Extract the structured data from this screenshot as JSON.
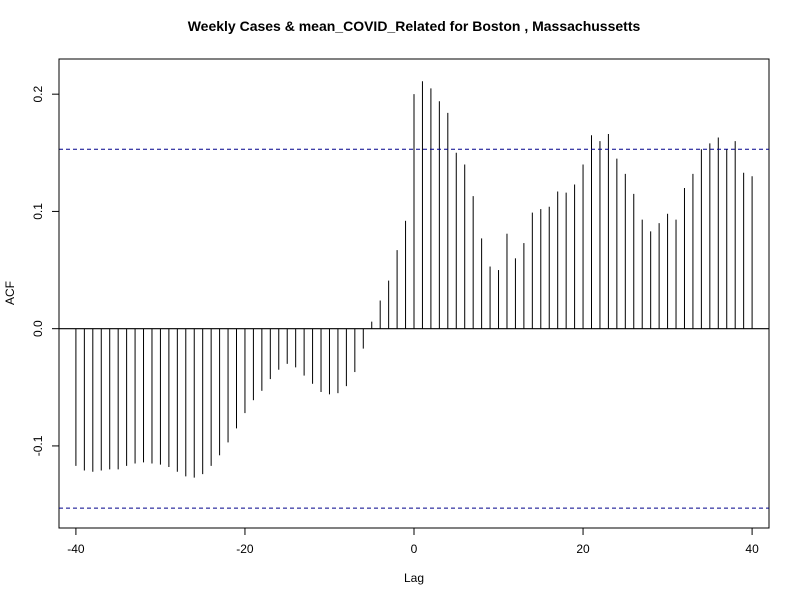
{
  "chart_data": {
    "type": "bar",
    "title": "Weekly Cases & mean_COVID_Related for Boston , Massachussetts",
    "xlabel": "Lag",
    "ylabel": "ACF",
    "xlim": [
      -42,
      42
    ],
    "ylim": [
      -0.17,
      0.23
    ],
    "x_ticks": [
      -40,
      -20,
      0,
      20,
      40
    ],
    "x_tick_labels": [
      "-40",
      "-20",
      "0",
      "20",
      "40"
    ],
    "y_ticks": [
      -0.1,
      0.0,
      0.1,
      0.2
    ],
    "y_tick_labels": [
      "-0.1",
      "0.0",
      "0.1",
      "0.2"
    ],
    "confidence_bounds": [
      0.153,
      -0.153
    ],
    "bound_color": "#00008B",
    "grid": false,
    "lags": [
      -40,
      -39,
      -38,
      -37,
      -36,
      -35,
      -34,
      -33,
      -32,
      -31,
      -30,
      -29,
      -28,
      -27,
      -26,
      -25,
      -24,
      -23,
      -22,
      -21,
      -20,
      -19,
      -18,
      -17,
      -16,
      -15,
      -14,
      -13,
      -12,
      -11,
      -10,
      -9,
      -8,
      -7,
      -6,
      -5,
      -4,
      -3,
      -2,
      -1,
      0,
      1,
      2,
      3,
      4,
      5,
      6,
      7,
      8,
      9,
      10,
      11,
      12,
      13,
      14,
      15,
      16,
      17,
      18,
      19,
      20,
      21,
      22,
      23,
      24,
      25,
      26,
      27,
      28,
      29,
      30,
      31,
      32,
      33,
      34,
      35,
      36,
      37,
      38,
      39,
      40
    ],
    "acf": [
      -0.117,
      -0.121,
      -0.122,
      -0.121,
      -0.12,
      -0.12,
      -0.117,
      -0.115,
      -0.114,
      -0.115,
      -0.116,
      -0.118,
      -0.122,
      -0.126,
      -0.127,
      -0.124,
      -0.117,
      -0.108,
      -0.097,
      -0.085,
      -0.072,
      -0.061,
      -0.053,
      -0.043,
      -0.035,
      -0.03,
      -0.033,
      -0.04,
      -0.047,
      -0.054,
      -0.056,
      -0.055,
      -0.049,
      -0.037,
      -0.017,
      0.006,
      0.024,
      0.041,
      0.067,
      0.092,
      0.2,
      0.211,
      0.205,
      0.194,
      0.184,
      0.15,
      0.14,
      0.113,
      0.077,
      0.053,
      0.05,
      0.081,
      0.06,
      0.073,
      0.099,
      0.102,
      0.104,
      0.117,
      0.116,
      0.123,
      0.14,
      0.165,
      0.16,
      0.166,
      0.145,
      0.132,
      0.115,
      0.093,
      0.083,
      0.09,
      0.098,
      0.093,
      0.12,
      0.132,
      0.153,
      0.158,
      0.163,
      0.153,
      0.16,
      0.133,
      0.13
    ]
  }
}
